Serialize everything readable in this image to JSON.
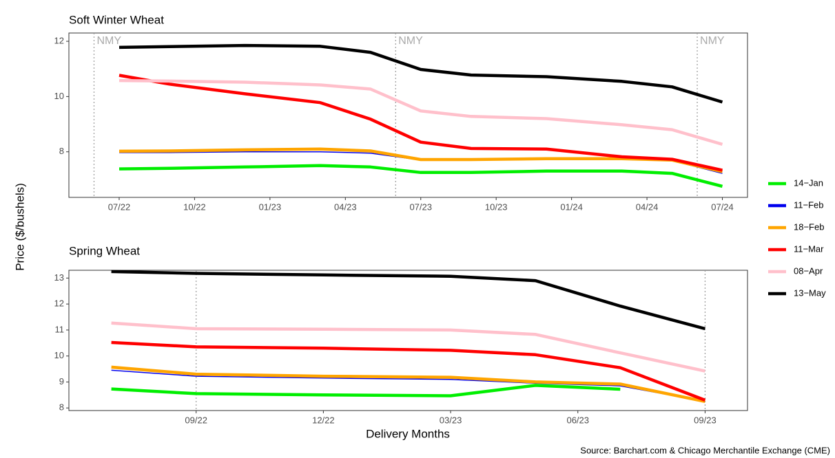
{
  "chart_data": [
    {
      "type": "line",
      "title": "Soft Winter Wheat",
      "ylabel": "Price ($/bushels)",
      "x": [
        "07/22",
        "09/22",
        "12/22",
        "03/23",
        "05/23",
        "07/23",
        "09/23",
        "12/23",
        "03/24",
        "05/24",
        "07/24"
      ],
      "xlim": [
        "05/22",
        "08/24"
      ],
      "xticks": [
        "07/22",
        "10/22",
        "01/23",
        "04/23",
        "07/23",
        "10/23",
        "01/24",
        "04/24",
        "07/24"
      ],
      "ylim": [
        6.35,
        12.3
      ],
      "yticks": [
        8,
        10,
        12
      ],
      "vlines": [
        {
          "x": "06/22",
          "label": "NMY"
        },
        {
          "x": "06/23",
          "label": "NMY"
        },
        {
          "x": "06/24",
          "label": "NMY"
        }
      ],
      "series": [
        {
          "name": "14−Jan",
          "color": "#00ee00",
          "values": [
            7.38,
            7.4,
            7.45,
            7.5,
            7.45,
            7.25,
            7.25,
            7.3,
            7.3,
            7.22,
            6.75
          ]
        },
        {
          "name": "11−Feb",
          "color": "#0000ee",
          "values": [
            7.97,
            7.97,
            8.0,
            8.0,
            7.95,
            7.7,
            7.7,
            7.72,
            7.72,
            7.68,
            7.22
          ]
        },
        {
          "name": "18−Feb",
          "color": "#ffa500",
          "values": [
            8.02,
            8.03,
            8.07,
            8.1,
            8.03,
            7.72,
            7.72,
            7.75,
            7.75,
            7.7,
            7.28
          ]
        },
        {
          "name": "11−Mar",
          "color": "#ff0000",
          "values": [
            10.77,
            10.45,
            10.1,
            9.78,
            9.18,
            8.35,
            8.12,
            8.1,
            7.82,
            7.73,
            7.33
          ]
        },
        {
          "name": "08−Apr",
          "color": "#ffc0cb",
          "values": [
            10.58,
            10.56,
            10.52,
            10.42,
            10.27,
            9.48,
            9.28,
            9.2,
            8.98,
            8.8,
            8.27
          ]
        },
        {
          "name": "13−May",
          "color": "#000000",
          "values": [
            11.78,
            11.81,
            11.85,
            11.82,
            11.6,
            10.98,
            10.78,
            10.72,
            10.55,
            10.35,
            9.8
          ]
        }
      ]
    },
    {
      "type": "line",
      "title": "Spring Wheat",
      "xlabel": "Delivery Months",
      "note": "Source: Barchart.com & Chicago Merchantile Exchange (CME)",
      "x": [
        "07/22",
        "09/22",
        "12/22",
        "03/23",
        "05/23",
        "07/23",
        "09/23"
      ],
      "xlim": [
        "06/22",
        "10/23"
      ],
      "xticks": [
        "09/22",
        "12/22",
        "03/23",
        "06/23",
        "09/23"
      ],
      "ylim": [
        7.9,
        13.3
      ],
      "yticks": [
        8,
        9,
        10,
        11,
        12,
        13
      ],
      "vlines": [
        {
          "x": "09/22"
        },
        {
          "x": "09/23"
        }
      ],
      "series": [
        {
          "color": "#00ee00",
          "values": [
            8.73,
            8.55,
            8.5,
            8.47,
            8.87,
            8.72,
            null
          ]
        },
        {
          "color": "#0000ee",
          "values": [
            9.45,
            9.22,
            9.15,
            9.1,
            8.95,
            8.85,
            8.25
          ]
        },
        {
          "color": "#ffa500",
          "values": [
            9.57,
            9.3,
            9.22,
            9.18,
            9.0,
            8.92,
            8.25
          ]
        },
        {
          "color": "#ff0000",
          "values": [
            10.52,
            10.35,
            10.3,
            10.22,
            10.05,
            9.55,
            8.3
          ]
        },
        {
          "color": "#ffc0cb",
          "values": [
            11.27,
            11.05,
            11.03,
            11.0,
            10.83,
            10.12,
            9.42
          ]
        },
        {
          "color": "#000000",
          "values": [
            13.25,
            13.18,
            13.12,
            13.07,
            12.9,
            11.92,
            11.05
          ]
        }
      ]
    }
  ]
}
